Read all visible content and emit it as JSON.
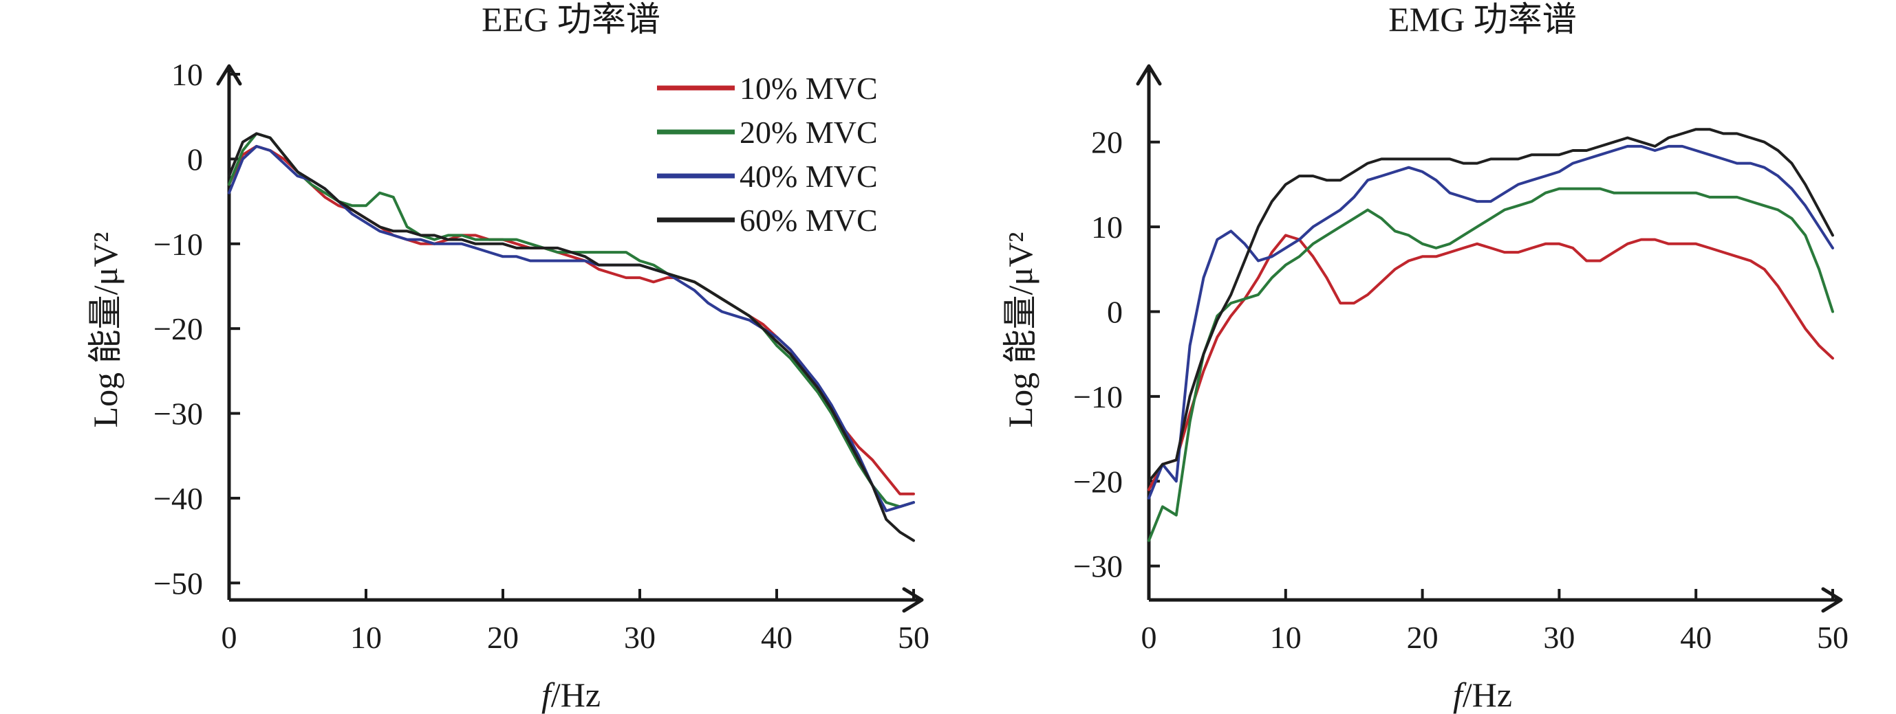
{
  "chart_data": [
    {
      "type": "line",
      "title": "EEG 功率谱",
      "xlabel_italic": "f",
      "xlabel_rest": "/Hz",
      "ylabel": "Log 能量/μV²",
      "xlim": [
        0,
        50
      ],
      "ylim": [
        -52,
        10
      ],
      "xticks": [
        0,
        10,
        20,
        30,
        40,
        50
      ],
      "yticks": [
        10,
        0,
        -10,
        -20,
        -30,
        -40,
        -50
      ],
      "ytick_labels": [
        "10",
        "0",
        "−10",
        "−20",
        "−30",
        "−40",
        "−50"
      ],
      "legend": "top-right",
      "series": [
        {
          "name": "10% MVC",
          "color": "#c0262d",
          "x": [
            0,
            1,
            2,
            3,
            4,
            5,
            6,
            7,
            8,
            9,
            10,
            11,
            12,
            13,
            14,
            15,
            16,
            17,
            18,
            19,
            20,
            21,
            22,
            23,
            24,
            25,
            26,
            27,
            28,
            29,
            30,
            31,
            32,
            33,
            34,
            35,
            36,
            37,
            38,
            39,
            40,
            41,
            42,
            43,
            44,
            45,
            46,
            47,
            48,
            49,
            50
          ],
          "y": [
            -3,
            0.5,
            1.5,
            1,
            0,
            -1.5,
            -3,
            -4.5,
            -5.5,
            -6,
            -7,
            -8,
            -9,
            -9.5,
            -10,
            -10,
            -9.5,
            -9,
            -9,
            -9.5,
            -9.5,
            -10,
            -10.5,
            -10.5,
            -11,
            -11.5,
            -12,
            -13,
            -13.5,
            -14,
            -14,
            -14.5,
            -14,
            -14,
            -14.5,
            -15.5,
            -16.5,
            -17.5,
            -18.5,
            -19.5,
            -21,
            -22.5,
            -24.5,
            -27,
            -29.5,
            -32,
            -34,
            -35.5,
            -37.5,
            -39.5,
            -39.5
          ]
        },
        {
          "name": "20% MVC",
          "color": "#2a7a3b",
          "x": [
            0,
            1,
            2,
            3,
            4,
            5,
            6,
            7,
            8,
            9,
            10,
            11,
            12,
            13,
            14,
            15,
            16,
            17,
            18,
            19,
            20,
            21,
            22,
            23,
            24,
            25,
            26,
            27,
            28,
            29,
            30,
            31,
            32,
            33,
            34,
            35,
            36,
            37,
            38,
            39,
            40,
            41,
            42,
            43,
            44,
            45,
            46,
            47,
            48,
            49,
            50
          ],
          "y": [
            -3,
            1,
            3,
            2.5,
            0.5,
            -1.5,
            -3,
            -4,
            -5,
            -5.5,
            -5.5,
            -4,
            -4.5,
            -8,
            -9,
            -9.5,
            -9,
            -9,
            -9.5,
            -9.5,
            -9.5,
            -9.5,
            -10,
            -10.5,
            -11,
            -11,
            -11,
            -11,
            -11,
            -11,
            -12,
            -12.5,
            -13.5,
            -14,
            -14.5,
            -15.5,
            -16.5,
            -17.5,
            -18.5,
            -20,
            -22,
            -23.5,
            -25.5,
            -27.5,
            -30,
            -33,
            -36,
            -38.5,
            -40.5,
            -41,
            -40.5
          ]
        },
        {
          "name": "40% MVC",
          "color": "#2e3b94",
          "x": [
            0,
            1,
            2,
            3,
            4,
            5,
            6,
            7,
            8,
            9,
            10,
            11,
            12,
            13,
            14,
            15,
            16,
            17,
            18,
            19,
            20,
            21,
            22,
            23,
            24,
            25,
            26,
            27,
            28,
            29,
            30,
            31,
            32,
            33,
            34,
            35,
            36,
            37,
            38,
            39,
            40,
            41,
            42,
            43,
            44,
            45,
            46,
            47,
            48,
            49,
            50
          ],
          "y": [
            -4,
            0,
            1.5,
            1,
            -0.5,
            -2,
            -2.5,
            -3.5,
            -5,
            -6.5,
            -7.5,
            -8.5,
            -9,
            -9.5,
            -9.5,
            -10,
            -10,
            -10,
            -10.5,
            -11,
            -11.5,
            -11.5,
            -12,
            -12,
            -12,
            -12,
            -12,
            -12.5,
            -12.5,
            -12.5,
            -12.5,
            -13,
            -13.5,
            -14.5,
            -15.5,
            -17,
            -18,
            -18.5,
            -19,
            -20,
            -21,
            -22.5,
            -24.5,
            -26.5,
            -29,
            -32,
            -35,
            -38.5,
            -41.5,
            -41,
            -40.5
          ]
        },
        {
          "name": "60% MVC",
          "color": "#1f1f1f",
          "x": [
            0,
            1,
            2,
            3,
            4,
            5,
            6,
            7,
            8,
            9,
            10,
            11,
            12,
            13,
            14,
            15,
            16,
            17,
            18,
            19,
            20,
            21,
            22,
            23,
            24,
            25,
            26,
            27,
            28,
            29,
            30,
            31,
            32,
            33,
            34,
            35,
            36,
            37,
            38,
            39,
            40,
            41,
            42,
            43,
            44,
            45,
            46,
            47,
            48,
            49,
            50
          ],
          "y": [
            -2,
            2,
            3,
            2.5,
            0.5,
            -1.5,
            -2.5,
            -3.5,
            -5,
            -6,
            -7,
            -8,
            -8.5,
            -8.5,
            -9,
            -9,
            -9.5,
            -9.5,
            -10,
            -10,
            -10,
            -10.5,
            -10.5,
            -10.5,
            -10.5,
            -11,
            -11.5,
            -12.5,
            -12.5,
            -12.5,
            -12.5,
            -13,
            -13.5,
            -14,
            -14.5,
            -15.5,
            -16.5,
            -17.5,
            -18.5,
            -20,
            -21.5,
            -23,
            -25,
            -27,
            -29.5,
            -32.5,
            -35.5,
            -38.5,
            -42.5,
            -44,
            -45
          ]
        }
      ]
    },
    {
      "type": "line",
      "title": "EMG 功率谱",
      "xlabel_italic": "f",
      "xlabel_rest": "/Hz",
      "ylabel": "Log 能量/μV²",
      "xlim": [
        0,
        50
      ],
      "ylim": [
        -34,
        28
      ],
      "xticks": [
        0,
        10,
        20,
        30,
        40,
        50
      ],
      "yticks": [
        20,
        10,
        0,
        -10,
        -20,
        -30
      ],
      "ytick_labels": [
        "20",
        "10",
        "0",
        "−10",
        "−20",
        "−30"
      ],
      "legend": "none",
      "series": [
        {
          "name": "10% MVC",
          "color": "#c0262d",
          "x": [
            0,
            1,
            2,
            3,
            4,
            5,
            6,
            7,
            8,
            9,
            10,
            11,
            12,
            13,
            14,
            15,
            16,
            17,
            18,
            19,
            20,
            21,
            22,
            23,
            24,
            25,
            26,
            27,
            28,
            29,
            30,
            31,
            32,
            33,
            34,
            35,
            36,
            37,
            38,
            39,
            40,
            41,
            42,
            43,
            44,
            45,
            46,
            47,
            48,
            49,
            50
          ],
          "y": [
            -21,
            -18,
            -17.5,
            -12,
            -7,
            -3,
            -0.5,
            1.5,
            4,
            7,
            9,
            8.5,
            6.5,
            4,
            1,
            1,
            2,
            3.5,
            5,
            6,
            6.5,
            6.5,
            7,
            7.5,
            8,
            7.5,
            7,
            7,
            7.5,
            8,
            8,
            7.5,
            6,
            6,
            7,
            8,
            8.5,
            8.5,
            8,
            8,
            8,
            7.5,
            7,
            6.5,
            6,
            5,
            3,
            0.5,
            -2,
            -4,
            -5.5
          ]
        },
        {
          "name": "20% MVC",
          "color": "#2a7a3b",
          "x": [
            0,
            1,
            2,
            3,
            4,
            5,
            6,
            7,
            8,
            9,
            10,
            11,
            12,
            13,
            14,
            15,
            16,
            17,
            18,
            19,
            20,
            21,
            22,
            23,
            24,
            25,
            26,
            27,
            28,
            29,
            30,
            31,
            32,
            33,
            34,
            35,
            36,
            37,
            38,
            39,
            40,
            41,
            42,
            43,
            44,
            45,
            46,
            47,
            48,
            49,
            50
          ],
          "y": [
            -27,
            -23,
            -24,
            -13,
            -5,
            -0.5,
            1,
            1.5,
            2,
            4,
            5.5,
            6.5,
            8,
            9,
            10,
            11,
            12,
            11,
            9.5,
            9,
            8,
            7.5,
            8,
            9,
            10,
            11,
            12,
            12.5,
            13,
            14,
            14.5,
            14.5,
            14.5,
            14.5,
            14,
            14,
            14,
            14,
            14,
            14,
            14,
            13.5,
            13.5,
            13.5,
            13,
            12.5,
            12,
            11,
            9,
            5,
            0
          ]
        },
        {
          "name": "40% MVC",
          "color": "#2e3b94",
          "x": [
            0,
            1,
            2,
            3,
            4,
            5,
            6,
            7,
            8,
            9,
            10,
            11,
            12,
            13,
            14,
            15,
            16,
            17,
            18,
            19,
            20,
            21,
            22,
            23,
            24,
            25,
            26,
            27,
            28,
            29,
            30,
            31,
            32,
            33,
            34,
            35,
            36,
            37,
            38,
            39,
            40,
            41,
            42,
            43,
            44,
            45,
            46,
            47,
            48,
            49,
            50
          ],
          "y": [
            -22,
            -18,
            -20,
            -4,
            4,
            8.5,
            9.5,
            8,
            6,
            6.5,
            7.5,
            8.5,
            10,
            11,
            12,
            13.5,
            15.5,
            16,
            16.5,
            17,
            16.5,
            15.5,
            14,
            13.5,
            13,
            13,
            14,
            15,
            15.5,
            16,
            16.5,
            17.5,
            18,
            18.5,
            19,
            19.5,
            19.5,
            19,
            19.5,
            19.5,
            19,
            18.5,
            18,
            17.5,
            17.5,
            17,
            16,
            14.5,
            12.5,
            10,
            7.5
          ]
        },
        {
          "name": "60% MVC",
          "color": "#1f1f1f",
          "x": [
            0,
            1,
            2,
            3,
            4,
            5,
            6,
            7,
            8,
            9,
            10,
            11,
            12,
            13,
            14,
            15,
            16,
            17,
            18,
            19,
            20,
            21,
            22,
            23,
            24,
            25,
            26,
            27,
            28,
            29,
            30,
            31,
            32,
            33,
            34,
            35,
            36,
            37,
            38,
            39,
            40,
            41,
            42,
            43,
            44,
            45,
            46,
            47,
            48,
            49,
            50
          ],
          "y": [
            -20,
            -18,
            -17.5,
            -10,
            -5,
            -1,
            2,
            6,
            10,
            13,
            15,
            16,
            16,
            15.5,
            15.5,
            16.5,
            17.5,
            18,
            18,
            18,
            18,
            18,
            18,
            17.5,
            17.5,
            18,
            18,
            18,
            18.5,
            18.5,
            18.5,
            19,
            19,
            19.5,
            20,
            20.5,
            20,
            19.5,
            20.5,
            21,
            21.5,
            21.5,
            21,
            21,
            20.5,
            20,
            19,
            17.5,
            15,
            12,
            9
          ]
        }
      ]
    }
  ]
}
